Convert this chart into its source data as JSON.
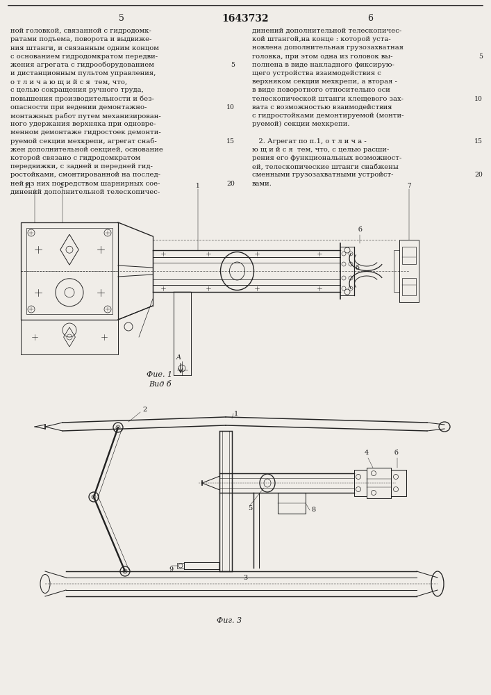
{
  "page_bg": "#f0ede8",
  "text_color": "#1a1a1a",
  "line_color": "#222222",
  "title_number": "1643732",
  "page_left": "5",
  "page_right": "6",
  "figsize": [
    7.07,
    10.0
  ],
  "dpi": 100,
  "left_texts": [
    "ной головкой, связанной с гидродомк-",
    "ратами подъема, поворота и выдвиже-",
    "ния штанги, и связанным одним концом",
    "с основанием гидродомкратом передви-",
    "жения агрегата с гидрооборудованием",
    "и дистанционным пультом управления,",
    "о т л и ч а ю щ и й с я  тем, что,",
    "с целью сокращения ручного труда,",
    "повышения производительности и без-",
    "опасности при ведении демонтажно-",
    "монтажных работ путем механизирован-",
    "ного удержания верхняка при одновре-",
    "менном демонтаже гидростоек демонти-",
    "руемой секции мехкрепи, агрегат снаб-",
    "жен дополнительной секцией, основание",
    "которой связано с гидродомкратом",
    "передвижки, с задней и передней гид-",
    "ростойками, смонтированной на послед-",
    "ней из них посредством шарнирных сое-",
    "динений дополнительной телескопичес-"
  ],
  "right_texts": [
    "динений дополнительной телескопичес-",
    "кой штангой,на конце : которой уста-",
    "новлена дополнительная грузозахватная",
    "головка, при этом одна из головок вы-",
    "полнена в виде накладного фиксирую-",
    "щего устройства взаимодействия с",
    "верхняком секции мехкрепи, а вторая -",
    "в виде поворотного относительно оси",
    "телескопической штанги клещевого зах-",
    "вата с возможностью взаимодействия",
    "с гидростойками демонтируемой (монти-",
    "руемой) секции мехкрепи.",
    "",
    "   2. Агрегат по п.1, о т л и ч а -",
    "ю щ и й с я  тем, что, с целью расши-",
    "рения его функциональных возможност-",
    "ей, телескопические штанги снабжены",
    "сменными грузозахватными устройст-",
    "вами."
  ],
  "line_nums_left": {
    "4": "5",
    "9": "10",
    "13": "15",
    "18": "20"
  },
  "line_nums_right": {
    "3": "5",
    "8": "10",
    "13": "15",
    "17": "20"
  }
}
